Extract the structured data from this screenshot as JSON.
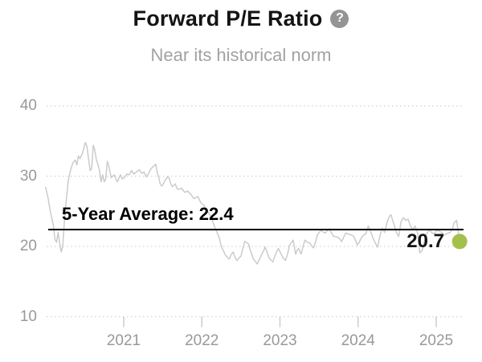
{
  "header": {
    "title": "Forward P/E Ratio",
    "help_glyph": "?",
    "subtitle": "Near its historical norm"
  },
  "annotations": {
    "average_label": "5-Year Average: 22.4",
    "average_value": 22.4,
    "current_label": "20.7",
    "current_value": 20.7
  },
  "colors": {
    "title": "#141414",
    "subtitle": "#a2a2a2",
    "axis_label": "#999999",
    "series_line": "#cbcbcb",
    "gridline": "#d2d2d2",
    "tick": "#cccccc",
    "average_line": "#000000",
    "current_dot": "#a3c14a",
    "help_icon_bg": "#949494"
  },
  "chart_data": {
    "type": "line",
    "title": "Forward P/E Ratio",
    "subtitle": "Near its historical norm",
    "xlabel": "",
    "ylabel": "",
    "y_ticks": [
      10,
      20,
      30,
      40
    ],
    "x_ticks": [
      2021,
      2022,
      2023,
      2024,
      2025
    ],
    "xlim": [
      2020.0,
      2025.36
    ],
    "ylim": [
      7,
      42
    ],
    "grid": "dotted-horizontal",
    "legend": "none",
    "average_line": {
      "value": 22.4,
      "label": "5-Year Average: 22.4"
    },
    "current_point": {
      "x": 2025.3,
      "value": 20.7,
      "label": "20.7"
    },
    "series_name": "Forward P/E Ratio",
    "points": [
      [
        2020.0,
        28.4
      ],
      [
        2020.03,
        27.0
      ],
      [
        2020.06,
        25.0
      ],
      [
        2020.1,
        23.0
      ],
      [
        2020.12,
        21.0
      ],
      [
        2020.14,
        20.6
      ],
      [
        2020.16,
        22.0
      ],
      [
        2020.18,
        20.5
      ],
      [
        2020.2,
        19.2
      ],
      [
        2020.22,
        20.0
      ],
      [
        2020.24,
        23.5
      ],
      [
        2020.26,
        26.0
      ],
      [
        2020.29,
        29.4
      ],
      [
        2020.32,
        30.9
      ],
      [
        2020.35,
        31.9
      ],
      [
        2020.38,
        32.3
      ],
      [
        2020.4,
        31.6
      ],
      [
        2020.42,
        32.9
      ],
      [
        2020.44,
        32.5
      ],
      [
        2020.47,
        33.2
      ],
      [
        2020.49,
        34.0
      ],
      [
        2020.51,
        34.8
      ],
      [
        2020.53,
        34.2
      ],
      [
        2020.55,
        32.5
      ],
      [
        2020.57,
        30.8
      ],
      [
        2020.59,
        31.1
      ],
      [
        2020.61,
        34.4
      ],
      [
        2020.63,
        33.7
      ],
      [
        2020.65,
        32.3
      ],
      [
        2020.67,
        31.7
      ],
      [
        2020.69,
        30.8
      ],
      [
        2020.71,
        29.2
      ],
      [
        2020.73,
        30.2
      ],
      [
        2020.75,
        29.2
      ],
      [
        2020.77,
        29.6
      ],
      [
        2020.79,
        32.1
      ],
      [
        2020.81,
        31.4
      ],
      [
        2020.84,
        29.8
      ],
      [
        2020.86,
        30.0
      ],
      [
        2020.88,
        30.2
      ],
      [
        2020.9,
        29.6
      ],
      [
        2020.92,
        29.2
      ],
      [
        2020.94,
        29.8
      ],
      [
        2020.96,
        30.2
      ],
      [
        2020.98,
        29.6
      ],
      [
        2021.01,
        29.8
      ],
      [
        2021.04,
        30.3
      ],
      [
        2021.07,
        30.2
      ],
      [
        2021.1,
        30.8
      ],
      [
        2021.13,
        30.3
      ],
      [
        2021.16,
        30.6
      ],
      [
        2021.2,
        30.9
      ],
      [
        2021.23,
        30.4
      ],
      [
        2021.26,
        30.6
      ],
      [
        2021.29,
        29.9
      ],
      [
        2021.32,
        30.4
      ],
      [
        2021.35,
        31.1
      ],
      [
        2021.38,
        31.4
      ],
      [
        2021.41,
        31.7
      ],
      [
        2021.43,
        30.5
      ],
      [
        2021.45,
        29.7
      ],
      [
        2021.47,
        28.8
      ],
      [
        2021.49,
        28.6
      ],
      [
        2021.51,
        29.0
      ],
      [
        2021.53,
        29.4
      ],
      [
        2021.56,
        29.9
      ],
      [
        2021.58,
        29.8
      ],
      [
        2021.6,
        29.0
      ],
      [
        2021.62,
        28.5
      ],
      [
        2021.64,
        28.7
      ],
      [
        2021.66,
        28.9
      ],
      [
        2021.68,
        28.3
      ],
      [
        2021.7,
        28.1
      ],
      [
        2021.72,
        28.2
      ],
      [
        2021.74,
        28.3
      ],
      [
        2021.76,
        28.0
      ],
      [
        2021.78,
        27.7
      ],
      [
        2021.8,
        27.8
      ],
      [
        2021.82,
        27.9
      ],
      [
        2021.84,
        27.6
      ],
      [
        2021.86,
        27.4
      ],
      [
        2021.88,
        27.1
      ],
      [
        2021.9,
        26.8
      ],
      [
        2021.93,
        27.0
      ],
      [
        2021.95,
        27.1
      ],
      [
        2021.97,
        26.6
      ],
      [
        2021.99,
        26.2
      ],
      [
        2022.01,
        26.0
      ],
      [
        2022.03,
        25.8
      ],
      [
        2022.05,
        25.4
      ],
      [
        2022.07,
        25.1
      ],
      [
        2022.09,
        24.7
      ],
      [
        2022.11,
        24.4
      ],
      [
        2022.13,
        23.8
      ],
      [
        2022.15,
        23.2
      ],
      [
        2022.17,
        22.6
      ],
      [
        2022.19,
        22.1
      ],
      [
        2022.21,
        21.6
      ],
      [
        2022.23,
        21.0
      ],
      [
        2022.24,
        20.4
      ],
      [
        2022.26,
        19.8
      ],
      [
        2022.3,
        18.8
      ],
      [
        2022.33,
        18.4
      ],
      [
        2022.35,
        18.2
      ],
      [
        2022.38,
        18.9
      ],
      [
        2022.4,
        19.2
      ],
      [
        2022.43,
        18.3
      ],
      [
        2022.45,
        18.0
      ],
      [
        2022.48,
        18.4
      ],
      [
        2022.5,
        18.6
      ],
      [
        2022.52,
        19.5
      ],
      [
        2022.55,
        20.7
      ],
      [
        2022.58,
        20.5
      ],
      [
        2022.6,
        20.3
      ],
      [
        2022.62,
        19.5
      ],
      [
        2022.66,
        18.2
      ],
      [
        2022.69,
        17.8
      ],
      [
        2022.71,
        17.5
      ],
      [
        2022.73,
        18.0
      ],
      [
        2022.76,
        18.7
      ],
      [
        2022.79,
        19.4
      ],
      [
        2022.81,
        19.9
      ],
      [
        2022.83,
        19.3
      ],
      [
        2022.86,
        18.4
      ],
      [
        2022.89,
        18.0
      ],
      [
        2022.91,
        17.8
      ],
      [
        2022.93,
        18.5
      ],
      [
        2022.96,
        19.3
      ],
      [
        2022.98,
        19.7
      ],
      [
        2023.02,
        18.8
      ],
      [
        2023.04,
        18.4
      ],
      [
        2023.07,
        18.0
      ],
      [
        2023.1,
        19.0
      ],
      [
        2023.12,
        20.1
      ],
      [
        2023.15,
        20.6
      ],
      [
        2023.17,
        20.9
      ],
      [
        2023.2,
        18.9
      ],
      [
        2023.22,
        19.5
      ],
      [
        2023.24,
        19.7
      ],
      [
        2023.27,
        18.9
      ],
      [
        2023.3,
        20.2
      ],
      [
        2023.32,
        20.9
      ],
      [
        2023.35,
        20.6
      ],
      [
        2023.38,
        20.5
      ],
      [
        2023.41,
        20.0
      ],
      [
        2023.43,
        19.8
      ],
      [
        2023.46,
        20.8
      ],
      [
        2023.48,
        21.7
      ],
      [
        2023.51,
        22.1
      ],
      [
        2023.53,
        22.3
      ],
      [
        2023.56,
        22.0
      ],
      [
        2023.58,
        21.9
      ],
      [
        2023.61,
        22.3
      ],
      [
        2023.63,
        22.5
      ],
      [
        2023.66,
        21.9
      ],
      [
        2023.68,
        21.5
      ],
      [
        2023.71,
        21.4
      ],
      [
        2023.74,
        21.3
      ],
      [
        2023.77,
        21.0
      ],
      [
        2023.79,
        20.7
      ],
      [
        2023.82,
        21.4
      ],
      [
        2023.84,
        21.9
      ],
      [
        2023.87,
        21.8
      ],
      [
        2023.89,
        21.7
      ],
      [
        2023.92,
        21.6
      ],
      [
        2023.94,
        21.5
      ],
      [
        2023.97,
        20.8
      ],
      [
        2023.99,
        20.2
      ],
      [
        2024.02,
        20.7
      ],
      [
        2024.04,
        21.2
      ],
      [
        2024.07,
        21.6
      ],
      [
        2024.1,
        21.8
      ],
      [
        2024.13,
        22.9
      ],
      [
        2024.16,
        22.2
      ],
      [
        2024.19,
        21.2
      ],
      [
        2024.22,
        20.5
      ],
      [
        2024.25,
        19.9
      ],
      [
        2024.28,
        21.6
      ],
      [
        2024.31,
        22.6
      ],
      [
        2024.34,
        22.0
      ],
      [
        2024.37,
        23.4
      ],
      [
        2024.4,
        24.3
      ],
      [
        2024.42,
        24.5
      ],
      [
        2024.46,
        23.1
      ],
      [
        2024.49,
        22.0
      ],
      [
        2024.52,
        21.4
      ],
      [
        2024.55,
        23.5
      ],
      [
        2024.58,
        24.1
      ],
      [
        2024.61,
        23.7
      ],
      [
        2024.64,
        23.9
      ],
      [
        2024.67,
        22.9
      ],
      [
        2024.7,
        22.4
      ],
      [
        2024.73,
        22.9
      ],
      [
        2024.76,
        22.0
      ],
      [
        2024.79,
        19.1
      ],
      [
        2024.82,
        19.4
      ],
      [
        2024.84,
        20.3
      ],
      [
        2024.87,
        21.6
      ],
      [
        2024.9,
        22.2
      ],
      [
        2024.92,
        22.3
      ],
      [
        2024.95,
        21.9
      ],
      [
        2024.97,
        21.8
      ],
      [
        2025.0,
        22.2
      ],
      [
        2025.02,
        22.3
      ],
      [
        2025.05,
        22.1
      ],
      [
        2025.07,
        22.0
      ],
      [
        2025.1,
        21.6
      ],
      [
        2025.12,
        21.7
      ],
      [
        2025.15,
        21.9
      ],
      [
        2025.18,
        22.0
      ],
      [
        2025.21,
        22.6
      ],
      [
        2025.23,
        23.4
      ],
      [
        2025.26,
        23.7
      ],
      [
        2025.28,
        22.3
      ],
      [
        2025.3,
        20.7
      ]
    ]
  }
}
